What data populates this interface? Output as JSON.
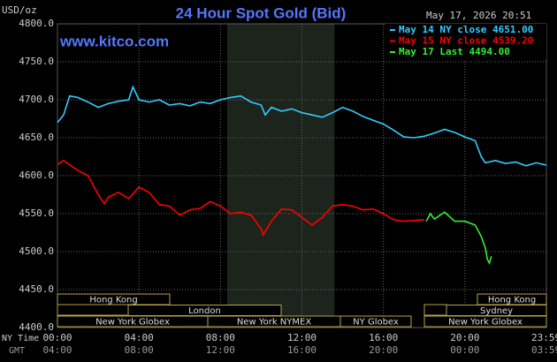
{
  "chart_data": {
    "type": "line",
    "title": "24 Hour Spot Gold (Bid)",
    "site": "www.kitco.com",
    "timestamp": "May 17, 2026 20:51",
    "y_label": "USD/oz",
    "x_label": "NY Time",
    "x2_label": "GMT",
    "xlim": [
      0,
      24
    ],
    "ylim": [
      4400,
      4800
    ],
    "yticks": [
      {
        "value": 4400,
        "label": "4400.0"
      },
      {
        "value": 4450,
        "label": "4450.0"
      },
      {
        "value": 4500,
        "label": "4500.0"
      },
      {
        "value": 4550,
        "label": "4550.0"
      },
      {
        "value": 4600,
        "label": "4600.0"
      },
      {
        "value": 4650,
        "label": "4650.0"
      },
      {
        "value": 4700,
        "label": "4700.0"
      },
      {
        "value": 4750,
        "label": "4750.0"
      },
      {
        "value": 4800,
        "label": "4800.0"
      }
    ],
    "xticks": [
      {
        "value": 0,
        "label": "00:00"
      },
      {
        "value": 4,
        "label": "04:00"
      },
      {
        "value": 8,
        "label": "08:00"
      },
      {
        "value": 12,
        "label": "12:00"
      },
      {
        "value": 16,
        "label": "16:00"
      },
      {
        "value": 20,
        "label": "20:00"
      },
      {
        "value": 23.98,
        "label": "23:59"
      }
    ],
    "gmt_ticks": [
      "04:00",
      "08:00",
      "12:00",
      "16:00",
      "20:00",
      "00:00",
      "03:59"
    ],
    "grid": true,
    "sessions": [
      "Hong Kong",
      "London",
      "New York Globex",
      "New York NYMEX",
      "NY Globex",
      "Hong Kong",
      "Sydney",
      "New York Globex"
    ],
    "series": [
      {
        "name": "May 14 NY close 4651.00",
        "color": "#33ccff",
        "x": [
          0,
          0.3,
          0.6,
          1,
          1.5,
          2,
          2.5,
          3,
          3.5,
          3.7,
          4,
          4.5,
          5,
          5.5,
          6,
          6.5,
          7,
          7.5,
          8,
          8.5,
          9,
          9.5,
          10,
          10.2,
          10.5,
          11,
          11.5,
          12,
          12.5,
          13,
          13.5,
          14,
          14.5,
          15,
          15.5,
          16,
          16.5,
          17,
          17.5,
          18,
          18.5,
          19,
          19.5,
          20,
          20.5,
          20.8,
          21,
          21.5,
          22,
          22.5,
          23,
          23.5,
          24
        ],
        "values": [
          4670,
          4680,
          4705,
          4703,
          4697,
          4690,
          4695,
          4698,
          4700,
          4717,
          4700,
          4697,
          4700,
          4693,
          4695,
          4692,
          4697,
          4695,
          4700,
          4703,
          4705,
          4697,
          4693,
          4680,
          4690,
          4685,
          4688,
          4683,
          4680,
          4677,
          4683,
          4690,
          4685,
          4678,
          4673,
          4668,
          4660,
          4651,
          4650,
          4652,
          4656,
          4661,
          4657,
          4651,
          4646,
          4625,
          4617,
          4620,
          4616,
          4618,
          4613,
          4617,
          4614
        ]
      },
      {
        "name": "May 15 NY close 4539.20",
        "color": "#ff0000",
        "x": [
          0,
          0.3,
          1,
          1.5,
          2,
          2.3,
          2.5,
          3,
          3.5,
          4,
          4.5,
          5,
          5.5,
          6,
          6.5,
          7,
          7.5,
          8,
          8.5,
          9,
          9.5,
          10,
          10.1,
          10.5,
          11,
          11.5,
          12,
          12.5,
          13,
          13.5,
          14,
          14.5,
          15,
          15.5,
          16,
          16.5,
          17,
          17.5,
          18
        ],
        "values": [
          4615,
          4620,
          4607,
          4600,
          4575,
          4563,
          4572,
          4578,
          4570,
          4585,
          4578,
          4562,
          4560,
          4548,
          4555,
          4557,
          4566,
          4560,
          4550,
          4552,
          4548,
          4530,
          4522,
          4540,
          4556,
          4555,
          4545,
          4535,
          4545,
          4560,
          4562,
          4560,
          4555,
          4556,
          4550,
          4542,
          4540,
          4541,
          4542
        ]
      },
      {
        "name": "May 17 Last 4494.00",
        "color": "#33ee33",
        "x": [
          18.1,
          18.3,
          18.5,
          19,
          19.5,
          20,
          20.5,
          20.8,
          21,
          21.1,
          21.2,
          21.3
        ],
        "values": [
          4540,
          4550,
          4543,
          4552,
          4540,
          4540,
          4535,
          4520,
          4505,
          4490,
          4485,
          4494
        ]
      }
    ]
  }
}
